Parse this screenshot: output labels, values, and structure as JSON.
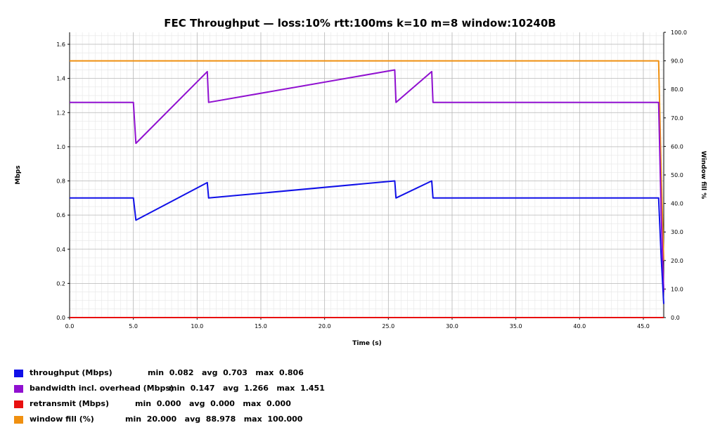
{
  "chart_data": {
    "type": "line",
    "title": "FEC Throughput — loss:10%  rtt:100ms  k=10 m=8  window:10240B",
    "xlabel": "Time (s)",
    "ylabel": "Mbps",
    "y2label": "Window fill %",
    "xlim": [
      0,
      46.6
    ],
    "ylim": [
      0,
      1.67
    ],
    "y2lim": [
      0,
      100
    ],
    "xticks": [
      "0.0",
      "5.0",
      "10.0",
      "15.0",
      "20.0",
      "25.0",
      "30.0",
      "35.0",
      "40.0",
      "45.0"
    ],
    "yticks": [
      "0.0",
      "0.2",
      "0.4",
      "0.6",
      "0.8",
      "1.0",
      "1.2",
      "1.4",
      "1.6"
    ],
    "y2ticks": [
      "0.0",
      "10.0",
      "20.0",
      "30.0",
      "40.0",
      "50.0",
      "60.0",
      "70.0",
      "80.0",
      "90.0",
      "100.0"
    ],
    "grid": true,
    "legend_position": "bottom",
    "series": [
      {
        "name": "throughput (Mbps)",
        "color": "#1010e8",
        "axis": "left",
        "stats": {
          "min": "0.082",
          "avg": "0.703",
          "max": "0.806"
        },
        "x": [
          0.0,
          5.0,
          5.2,
          10.8,
          10.9,
          25.5,
          25.6,
          28.4,
          28.5,
          46.2,
          46.4,
          46.6
        ],
        "values": [
          0.7,
          0.7,
          0.57,
          0.79,
          0.7,
          0.8,
          0.7,
          0.8,
          0.7,
          0.7,
          0.35,
          0.08
        ]
      },
      {
        "name": "bandwidth incl. overhead (Mbps)",
        "color": "#9010d0",
        "axis": "left",
        "stats": {
          "min": "0.147",
          "avg": "1.266",
          "max": "1.451"
        },
        "x": [
          0.0,
          5.0,
          5.2,
          10.8,
          10.9,
          25.5,
          25.6,
          28.4,
          28.5,
          46.2,
          46.4,
          46.6
        ],
        "values": [
          1.26,
          1.26,
          1.02,
          1.44,
          1.26,
          1.45,
          1.26,
          1.44,
          1.26,
          1.26,
          0.6,
          0.15
        ]
      },
      {
        "name": "retransmit (Mbps)",
        "color": "#e81010",
        "axis": "left",
        "stats": {
          "min": "0.000",
          "avg": "0.000",
          "max": "0.000"
        },
        "x": [
          0.0,
          46.6
        ],
        "values": [
          0.0,
          0.0
        ]
      },
      {
        "name": "window fill (%)",
        "color": "#f09010",
        "axis": "right",
        "stats": {
          "min": "20.000",
          "avg": "88.978",
          "max": "100.000"
        },
        "x": [
          0.0,
          46.2,
          46.4,
          46.6
        ],
        "values": [
          90,
          90,
          50,
          20
        ]
      }
    ]
  }
}
